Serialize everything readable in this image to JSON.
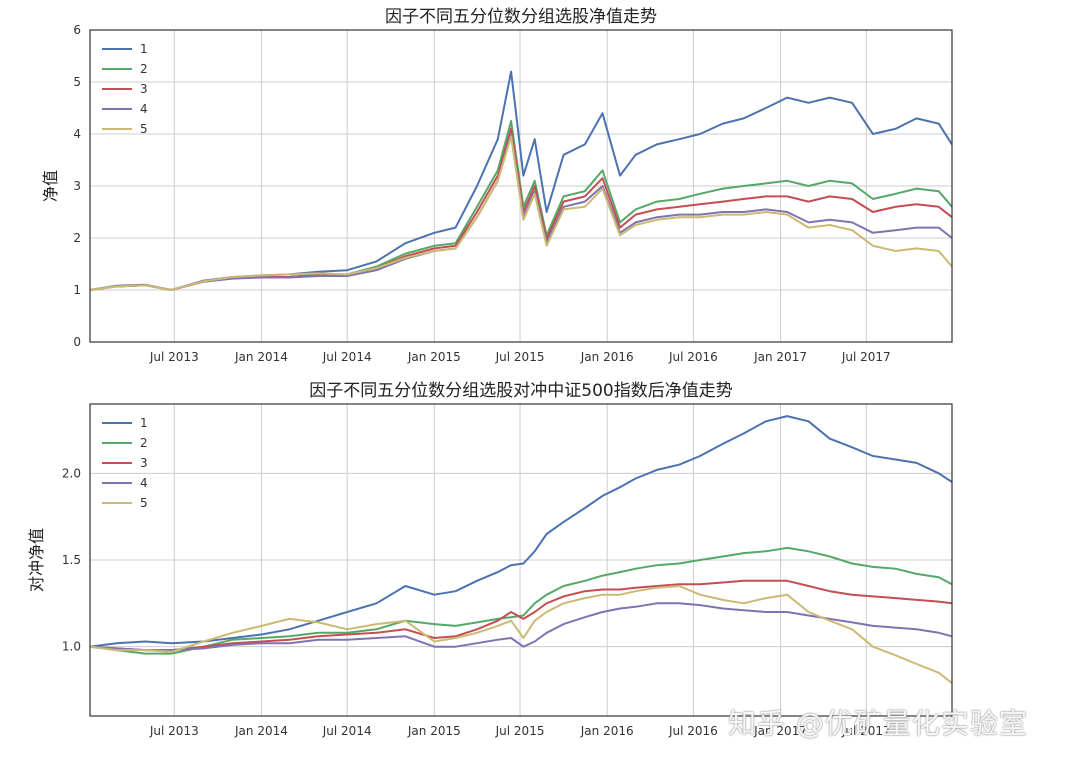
{
  "watermark": "知乎 @优矿量化实验室",
  "colors": {
    "1": "#4c72b0",
    "2": "#55a868",
    "3": "#c44e52",
    "4": "#8172b2",
    "5": "#ccb974"
  },
  "chart_data": [
    {
      "type": "line",
      "title": "因子不同五分位数分组选股净值走势",
      "xlabel": "",
      "ylabel": "净值",
      "x_range": [
        "2013-01-04",
        "2017-12-29"
      ],
      "ylim": [
        0,
        6
      ],
      "yticks": [
        "0",
        "1",
        "2",
        "3",
        "4",
        "5",
        "6"
      ],
      "xticks": [
        {
          "date": "2013-07-01",
          "label": "Jul 2013"
        },
        {
          "date": "2014-01-01",
          "label": "Jan 2014"
        },
        {
          "date": "2014-07-01",
          "label": "Jul 2014"
        },
        {
          "date": "2015-01-01",
          "label": "Jan 2015"
        },
        {
          "date": "2015-07-01",
          "label": "Jul 2015"
        },
        {
          "date": "2016-01-01",
          "label": "Jan 2016"
        },
        {
          "date": "2016-07-01",
          "label": "Jul 2016"
        },
        {
          "date": "2017-01-01",
          "label": "Jan 2017"
        },
        {
          "date": "2017-07-01",
          "label": "Jul 2017"
        }
      ],
      "grid": true,
      "legend": "top-left",
      "x": [
        "2013-01-04",
        "2013-03-01",
        "2013-05-01",
        "2013-06-25",
        "2013-09-01",
        "2013-11-01",
        "2014-01-01",
        "2014-03-01",
        "2014-05-01",
        "2014-07-01",
        "2014-09-01",
        "2014-11-01",
        "2015-01-01",
        "2015-02-15",
        "2015-04-01",
        "2015-05-15",
        "2015-06-12",
        "2015-07-08",
        "2015-08-01",
        "2015-08-26",
        "2015-10-01",
        "2015-11-15",
        "2015-12-22",
        "2016-01-28",
        "2016-03-01",
        "2016-04-15",
        "2016-06-01",
        "2016-07-15",
        "2016-09-01",
        "2016-10-15",
        "2016-12-01",
        "2017-01-15",
        "2017-03-01",
        "2017-04-15",
        "2017-06-01",
        "2017-07-15",
        "2017-09-01",
        "2017-10-15",
        "2017-12-01",
        "2017-12-29"
      ],
      "series": [
        {
          "name": "1",
          "values": [
            1.0,
            1.08,
            1.1,
            1.0,
            1.18,
            1.25,
            1.28,
            1.3,
            1.35,
            1.38,
            1.55,
            1.9,
            2.1,
            2.2,
            3.0,
            3.9,
            5.2,
            3.2,
            3.9,
            2.5,
            3.6,
            3.8,
            4.4,
            3.2,
            3.6,
            3.8,
            3.9,
            4.0,
            4.2,
            4.3,
            4.5,
            4.7,
            4.6,
            4.7,
            4.6,
            4.0,
            4.1,
            4.3,
            4.2,
            3.8
          ]
        },
        {
          "name": "2",
          "values": [
            1.0,
            1.07,
            1.09,
            1.0,
            1.17,
            1.23,
            1.25,
            1.25,
            1.3,
            1.3,
            1.45,
            1.7,
            1.85,
            1.9,
            2.6,
            3.3,
            4.25,
            2.6,
            3.1,
            2.05,
            2.8,
            2.9,
            3.3,
            2.3,
            2.55,
            2.7,
            2.75,
            2.85,
            2.95,
            3.0,
            3.05,
            3.1,
            3.0,
            3.1,
            3.05,
            2.75,
            2.85,
            2.95,
            2.9,
            2.6
          ]
        },
        {
          "name": "3",
          "values": [
            1.0,
            1.07,
            1.09,
            1.0,
            1.17,
            1.23,
            1.25,
            1.25,
            1.28,
            1.29,
            1.42,
            1.65,
            1.8,
            1.85,
            2.5,
            3.2,
            4.1,
            2.5,
            3.0,
            1.98,
            2.7,
            2.8,
            3.15,
            2.2,
            2.45,
            2.55,
            2.6,
            2.65,
            2.7,
            2.75,
            2.8,
            2.8,
            2.7,
            2.8,
            2.75,
            2.5,
            2.6,
            2.65,
            2.6,
            2.4
          ]
        },
        {
          "name": "4",
          "values": [
            1.0,
            1.07,
            1.09,
            1.0,
            1.16,
            1.22,
            1.24,
            1.24,
            1.27,
            1.27,
            1.38,
            1.6,
            1.75,
            1.8,
            2.4,
            3.1,
            4.0,
            2.4,
            2.9,
            1.9,
            2.6,
            2.7,
            3.0,
            2.1,
            2.3,
            2.4,
            2.45,
            2.45,
            2.5,
            2.5,
            2.55,
            2.5,
            2.3,
            2.35,
            2.3,
            2.1,
            2.15,
            2.2,
            2.2,
            2.0
          ]
        },
        {
          "name": "5",
          "values": [
            1.0,
            1.07,
            1.09,
            1.0,
            1.17,
            1.25,
            1.28,
            1.3,
            1.32,
            1.3,
            1.42,
            1.62,
            1.75,
            1.8,
            2.4,
            3.1,
            3.95,
            2.35,
            2.85,
            1.85,
            2.55,
            2.6,
            2.95,
            2.05,
            2.25,
            2.35,
            2.4,
            2.4,
            2.45,
            2.45,
            2.5,
            2.45,
            2.2,
            2.25,
            2.15,
            1.85,
            1.75,
            1.8,
            1.75,
            1.45
          ]
        }
      ]
    },
    {
      "type": "line",
      "title": "因子不同五分位数分组选股对冲中证500指数后净值走势",
      "xlabel": "",
      "ylabel": "对冲净值",
      "x_range": [
        "2013-01-04",
        "2017-12-29"
      ],
      "ylim": [
        0.6,
        2.4
      ],
      "yticks": [
        "1.0",
        "1.5",
        "2.0"
      ],
      "ytick_values": [
        1.0,
        1.5,
        2.0
      ],
      "xticks": [
        {
          "date": "2013-07-01",
          "label": "Jul 2013"
        },
        {
          "date": "2014-01-01",
          "label": "Jan 2014"
        },
        {
          "date": "2014-07-01",
          "label": "Jul 2014"
        },
        {
          "date": "2015-01-01",
          "label": "Jan 2015"
        },
        {
          "date": "2015-07-01",
          "label": "Jul 2015"
        },
        {
          "date": "2016-01-01",
          "label": "Jan 2016"
        },
        {
          "date": "2016-07-01",
          "label": "Jul 2016"
        },
        {
          "date": "2017-01-01",
          "label": "Jan 2017"
        },
        {
          "date": "2017-07-01",
          "label": "Jul 2017"
        }
      ],
      "grid": true,
      "legend": "top-left",
      "x": [
        "2013-01-04",
        "2013-03-01",
        "2013-05-01",
        "2013-06-25",
        "2013-09-01",
        "2013-11-01",
        "2014-01-01",
        "2014-03-01",
        "2014-05-01",
        "2014-07-01",
        "2014-09-01",
        "2014-11-01",
        "2015-01-01",
        "2015-02-15",
        "2015-04-01",
        "2015-05-15",
        "2015-06-12",
        "2015-07-08",
        "2015-08-01",
        "2015-08-26",
        "2015-10-01",
        "2015-11-15",
        "2015-12-22",
        "2016-01-28",
        "2016-03-01",
        "2016-04-15",
        "2016-06-01",
        "2016-07-15",
        "2016-09-01",
        "2016-10-15",
        "2016-12-01",
        "2017-01-15",
        "2017-03-01",
        "2017-04-15",
        "2017-06-01",
        "2017-07-15",
        "2017-09-01",
        "2017-10-15",
        "2017-12-01",
        "2017-12-29"
      ],
      "series": [
        {
          "name": "1",
          "values": [
            1.0,
            1.02,
            1.03,
            1.02,
            1.03,
            1.05,
            1.07,
            1.1,
            1.15,
            1.2,
            1.25,
            1.35,
            1.3,
            1.32,
            1.38,
            1.43,
            1.47,
            1.48,
            1.55,
            1.65,
            1.72,
            1.8,
            1.87,
            1.92,
            1.97,
            2.02,
            2.05,
            2.1,
            2.17,
            2.23,
            2.3,
            2.33,
            2.3,
            2.2,
            2.15,
            2.1,
            2.08,
            2.06,
            2.0,
            1.95
          ]
        },
        {
          "name": "2",
          "values": [
            1.0,
            0.98,
            0.96,
            0.96,
            1.0,
            1.04,
            1.05,
            1.06,
            1.08,
            1.08,
            1.1,
            1.15,
            1.13,
            1.12,
            1.14,
            1.16,
            1.17,
            1.18,
            1.25,
            1.3,
            1.35,
            1.38,
            1.41,
            1.43,
            1.45,
            1.47,
            1.48,
            1.5,
            1.52,
            1.54,
            1.55,
            1.57,
            1.55,
            1.52,
            1.48,
            1.46,
            1.45,
            1.42,
            1.4,
            1.36
          ]
        },
        {
          "name": "3",
          "values": [
            1.0,
            0.99,
            0.98,
            0.98,
            1.0,
            1.02,
            1.03,
            1.04,
            1.06,
            1.07,
            1.08,
            1.1,
            1.05,
            1.06,
            1.1,
            1.15,
            1.2,
            1.16,
            1.2,
            1.25,
            1.29,
            1.32,
            1.33,
            1.33,
            1.34,
            1.35,
            1.36,
            1.36,
            1.37,
            1.38,
            1.38,
            1.38,
            1.35,
            1.32,
            1.3,
            1.29,
            1.28,
            1.27,
            1.26,
            1.25
          ]
        },
        {
          "name": "4",
          "values": [
            1.0,
            0.99,
            0.98,
            0.98,
            0.99,
            1.01,
            1.02,
            1.02,
            1.04,
            1.04,
            1.05,
            1.06,
            1.0,
            1.0,
            1.02,
            1.04,
            1.05,
            1.0,
            1.03,
            1.08,
            1.13,
            1.17,
            1.2,
            1.22,
            1.23,
            1.25,
            1.25,
            1.24,
            1.22,
            1.21,
            1.2,
            1.2,
            1.18,
            1.16,
            1.14,
            1.12,
            1.11,
            1.1,
            1.08,
            1.06
          ]
        },
        {
          "name": "5",
          "values": [
            1.0,
            0.98,
            0.98,
            0.97,
            1.03,
            1.08,
            1.12,
            1.16,
            1.14,
            1.1,
            1.13,
            1.15,
            1.03,
            1.05,
            1.08,
            1.12,
            1.15,
            1.05,
            1.15,
            1.2,
            1.25,
            1.28,
            1.3,
            1.3,
            1.32,
            1.34,
            1.35,
            1.3,
            1.27,
            1.25,
            1.28,
            1.3,
            1.2,
            1.15,
            1.1,
            1.0,
            0.95,
            0.9,
            0.85,
            0.79
          ]
        }
      ]
    }
  ]
}
